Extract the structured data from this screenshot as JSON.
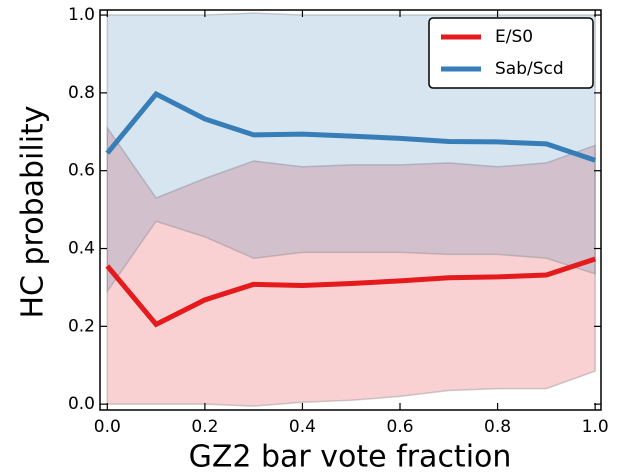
{
  "chart_data": {
    "type": "line",
    "xlabel": "GZ2 bar vote fraction",
    "ylabel": "HC probability",
    "x": [
      0.0,
      0.1,
      0.2,
      0.3,
      0.4,
      0.5,
      0.6,
      0.7,
      0.8,
      0.9,
      1.0
    ],
    "series": [
      {
        "name": "E/S0",
        "color": "#e41a1c",
        "values": [
          0.355,
          0.205,
          0.268,
          0.308,
          0.305,
          0.31,
          0.317,
          0.325,
          0.327,
          0.332,
          0.373
        ],
        "upper": [
          0.71,
          0.53,
          0.58,
          0.625,
          0.61,
          0.615,
          0.615,
          0.62,
          0.61,
          0.62,
          0.665
        ],
        "lower": [
          0.0,
          0.0,
          0.0,
          -0.005,
          0.005,
          0.01,
          0.02,
          0.035,
          0.04,
          0.04,
          0.085
        ]
      },
      {
        "name": "Sab/Scd",
        "color": "#377eb8",
        "values": [
          0.645,
          0.797,
          0.733,
          0.692,
          0.694,
          0.689,
          0.683,
          0.675,
          0.674,
          0.669,
          0.627
        ],
        "upper": [
          1.0,
          1.0,
          1.0,
          1.005,
          1.0,
          1.0,
          1.0,
          1.0,
          1.0,
          1.0,
          1.0
        ],
        "lower": [
          0.29,
          0.47,
          0.43,
          0.375,
          0.39,
          0.39,
          0.39,
          0.385,
          0.385,
          0.375,
          0.335
        ]
      }
    ],
    "xlim": [
      -0.015,
      1.012
    ],
    "ylim": [
      -0.015,
      1.013
    ],
    "xticks": [
      {
        "value": 0,
        "label": "0.0"
      },
      {
        "value": 0.2,
        "label": "0.2"
      },
      {
        "value": 0.4,
        "label": "0.4"
      },
      {
        "value": 0.6,
        "label": "0.6"
      },
      {
        "value": 0.8,
        "label": "0.8"
      },
      {
        "value": 1,
        "label": "1.0"
      }
    ],
    "yticks": [
      {
        "value": 0,
        "label": "0.0"
      },
      {
        "value": 0.2,
        "label": "0.2"
      },
      {
        "value": 0.4,
        "label": "0.4"
      },
      {
        "value": 0.6,
        "label": "0.6"
      },
      {
        "value": 0.8,
        "label": "0.8"
      },
      {
        "value": 1,
        "label": "1.0"
      }
    ],
    "legend": "upper right",
    "grid": false
  }
}
